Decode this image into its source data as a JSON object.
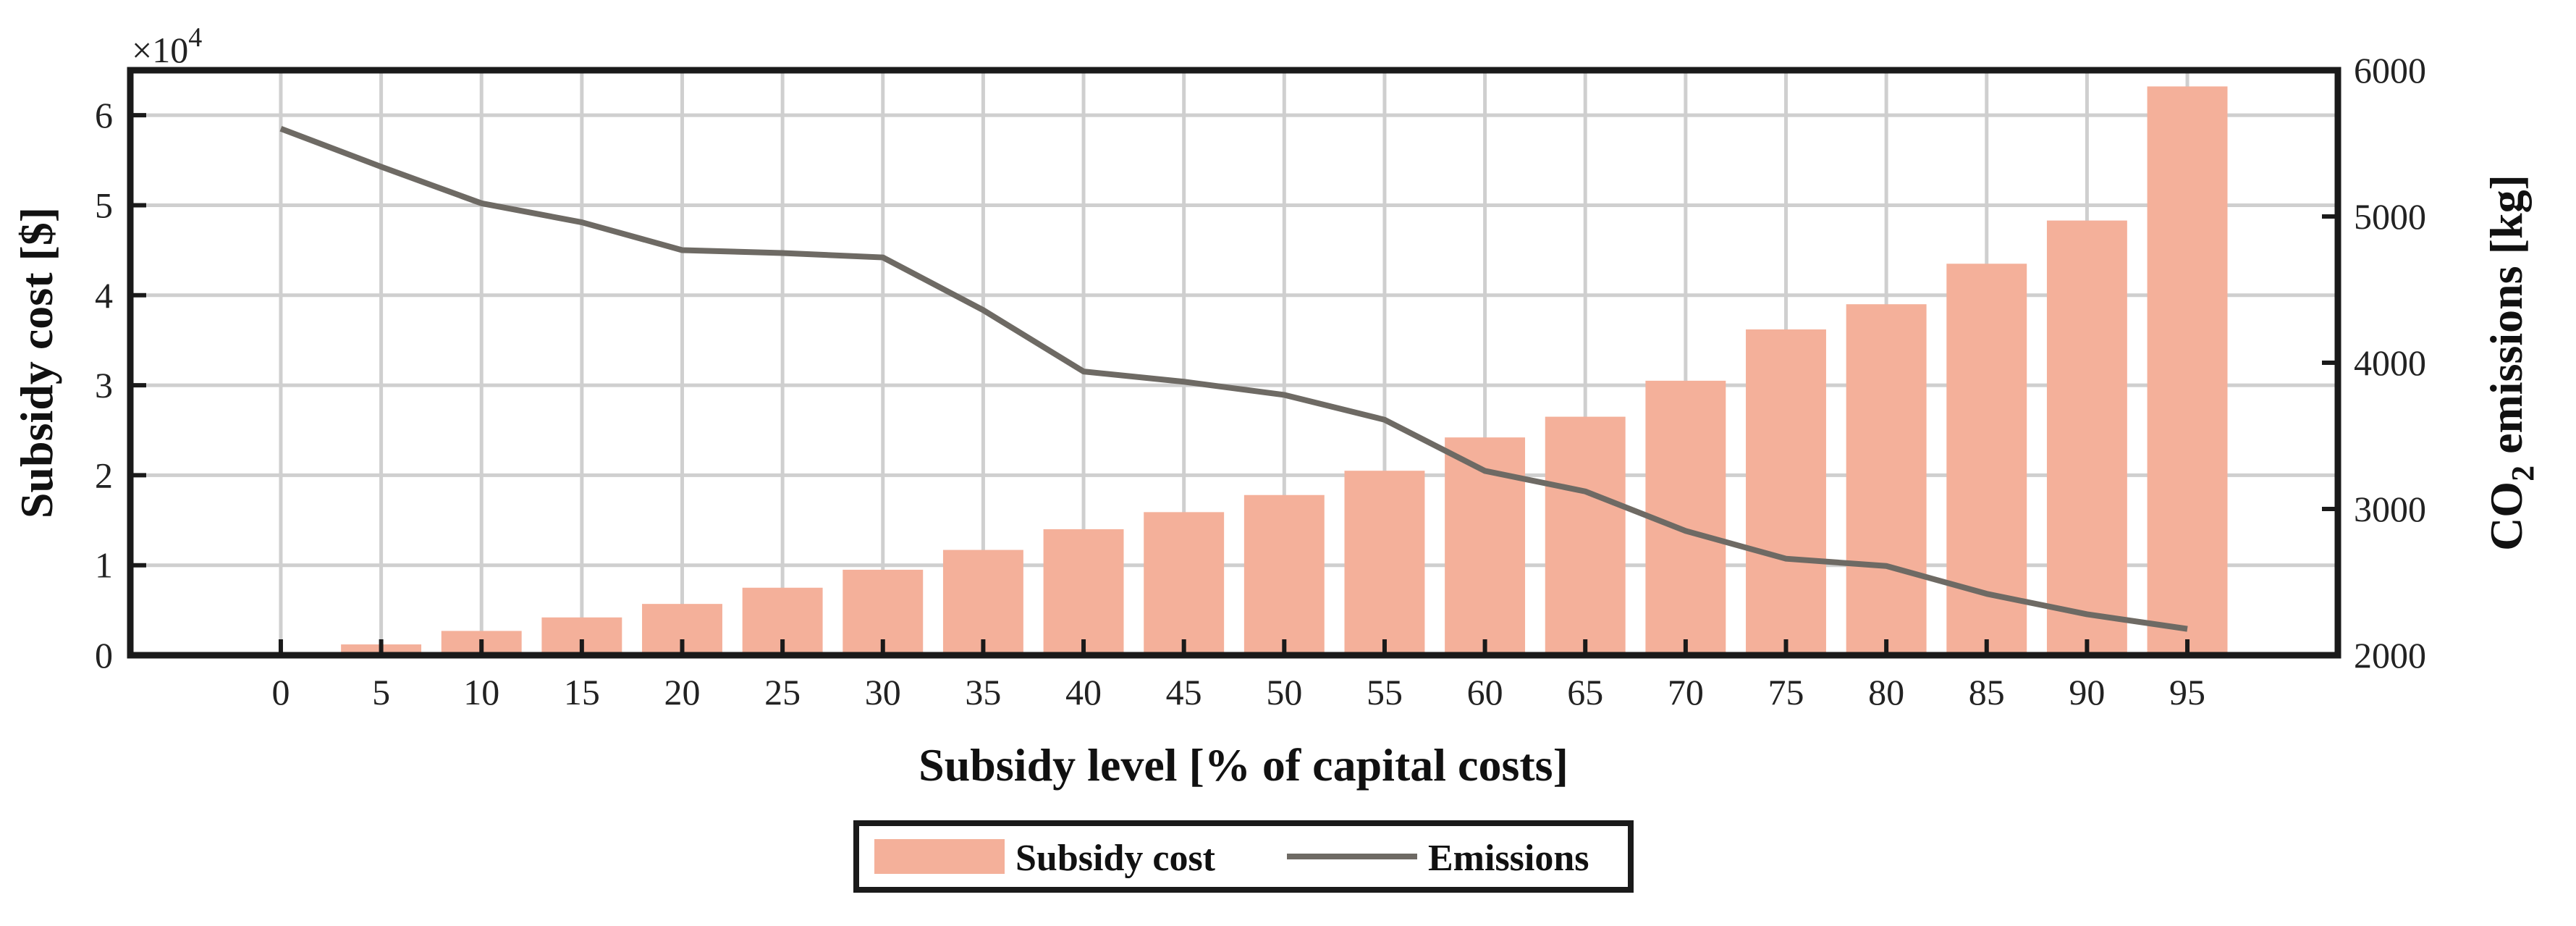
{
  "chart_data": {
    "type": "bar+line",
    "title": "",
    "xlabel": "Subsidy level [% of capital costs]",
    "ylabel_left": "Subsidy cost [$]",
    "ylabel_right_prefix": "CO",
    "ylabel_right_sub": "2",
    "ylabel_right_suffix": " emissions [kg]",
    "left_exponent_base": "×10",
    "left_exponent_power": "4",
    "categories": [
      "0",
      "5",
      "10",
      "15",
      "20",
      "25",
      "30",
      "35",
      "40",
      "45",
      "50",
      "55",
      "60",
      "65",
      "70",
      "75",
      "80",
      "85",
      "90",
      "95"
    ],
    "ylim_left": [
      0,
      6.5
    ],
    "yticks_left": [
      "0",
      "1",
      "2",
      "3",
      "4",
      "5",
      "6"
    ],
    "ylim_right": [
      2000,
      6000
    ],
    "yticks_right": [
      "2000",
      "3000",
      "4000",
      "5000",
      "6000"
    ],
    "grid": true,
    "legend_position": "bottom-center",
    "series": [
      {
        "name": "Subsidy cost",
        "type": "bar",
        "axis": "left",
        "color": "#F4B09A",
        "values": [
          0,
          0.12,
          0.27,
          0.42,
          0.57,
          0.75,
          0.95,
          1.17,
          1.4,
          1.59,
          1.78,
          2.05,
          2.42,
          2.65,
          3.05,
          3.62,
          3.9,
          4.35,
          4.83,
          6.32
        ]
      },
      {
        "name": "Emissions",
        "type": "line",
        "axis": "right",
        "color": "#6E6A64",
        "values": [
          5600,
          5340,
          5090,
          4960,
          4770,
          4750,
          4720,
          4360,
          3940,
          3870,
          3780,
          3610,
          3260,
          3120,
          2850,
          2660,
          2610,
          2420,
          2280,
          2180
        ]
      }
    ]
  }
}
